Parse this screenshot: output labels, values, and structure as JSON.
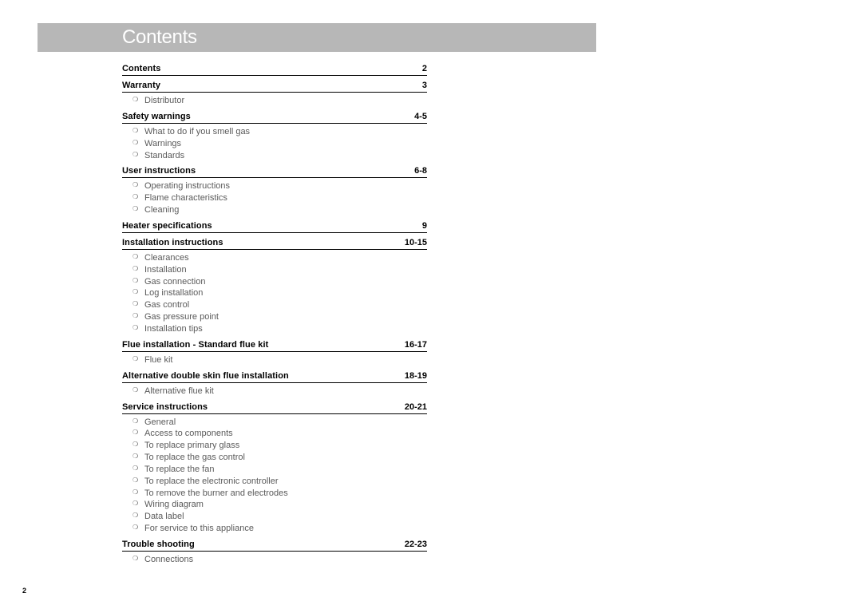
{
  "header": {
    "title": "Contents"
  },
  "page_number": "2",
  "bullet_glyph": "❍",
  "colors": {
    "header_bg": "#b7b7b7",
    "header_text": "#ffffff",
    "section_text": "#000000",
    "subitem_text": "#5a5a5a",
    "rule": "#000000",
    "background": "#ffffff"
  },
  "typography": {
    "header_fontsize_pt": 18,
    "section_fontsize_pt": 8,
    "subitem_fontsize_pt": 8,
    "page_number_fontsize_pt": 7
  },
  "sections": [
    {
      "title": "Contents",
      "page": "2",
      "items": []
    },
    {
      "title": "Warranty",
      "page": "3",
      "items": [
        "Distributor"
      ]
    },
    {
      "title": "Safety warnings",
      "page": "4-5",
      "items": [
        "What to do if you smell gas",
        "Warnings",
        "Standards"
      ]
    },
    {
      "title": "User instructions",
      "page": "6-8",
      "items": [
        "Operating instructions",
        "Flame characteristics",
        "Cleaning"
      ]
    },
    {
      "title": "Heater specifications",
      "page": "9",
      "items": []
    },
    {
      "title": "Installation instructions",
      "page": "10-15",
      "items": [
        "Clearances",
        "Installation",
        "Gas connection",
        "Log installation",
        "Gas control",
        "Gas pressure point",
        "Installation tips"
      ]
    },
    {
      "title": "Flue installation - Standard flue kit",
      "page": "16-17",
      "items": [
        "Flue kit"
      ]
    },
    {
      "title": "Alternative double skin flue installation",
      "page": "18-19",
      "items": [
        "Alternative flue kit"
      ]
    },
    {
      "title": "Service instructions",
      "page": "20-21",
      "items": [
        "General",
        "Access to components",
        "To replace primary glass",
        "To replace the gas control",
        "To replace the fan",
        "To replace the electronic controller",
        "To remove the burner and electrodes",
        "Wiring diagram",
        "Data label",
        "For service to this appliance"
      ]
    },
    {
      "title": "Trouble shooting",
      "page": "22-23",
      "items": [
        "Connections"
      ]
    }
  ]
}
